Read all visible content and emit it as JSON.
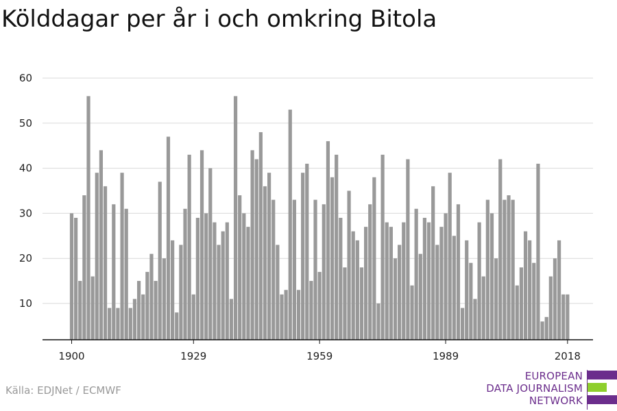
{
  "title": "Kölddagar per år i och omkring Bitola",
  "source": "Källa: EDJNet / ECMWF",
  "logo": {
    "lines": [
      "EUROPEAN",
      "DATA JOURNALISM",
      "NETWORK"
    ],
    "colors": {
      "purple": "#6b2d8c",
      "green": "#8ecf2c"
    }
  },
  "chart_data": {
    "type": "bar",
    "xlabel": "",
    "ylabel": "",
    "ylim": [
      0,
      60
    ],
    "yticks": [
      10,
      20,
      30,
      40,
      50,
      60
    ],
    "xticks": [
      1900,
      1929,
      1959,
      1989,
      2018
    ],
    "bar_color": "#999999",
    "grid": true,
    "x": [
      1900,
      1901,
      1902,
      1903,
      1904,
      1905,
      1906,
      1907,
      1908,
      1909,
      1910,
      1911,
      1912,
      1913,
      1914,
      1915,
      1916,
      1917,
      1918,
      1919,
      1920,
      1921,
      1922,
      1923,
      1924,
      1925,
      1926,
      1927,
      1928,
      1929,
      1930,
      1931,
      1932,
      1933,
      1934,
      1935,
      1936,
      1937,
      1938,
      1939,
      1940,
      1941,
      1942,
      1943,
      1944,
      1945,
      1946,
      1947,
      1948,
      1949,
      1950,
      1951,
      1952,
      1953,
      1954,
      1955,
      1956,
      1957,
      1958,
      1959,
      1960,
      1961,
      1962,
      1963,
      1964,
      1965,
      1966,
      1967,
      1968,
      1969,
      1970,
      1971,
      1972,
      1973,
      1974,
      1975,
      1976,
      1977,
      1978,
      1979,
      1980,
      1981,
      1982,
      1983,
      1984,
      1985,
      1986,
      1987,
      1988,
      1989,
      1990,
      1991,
      1992,
      1993,
      1994,
      1995,
      1996,
      1997,
      1998,
      1999,
      2000,
      2001,
      2002,
      2003,
      2004,
      2005,
      2006,
      2007,
      2008,
      2009,
      2010,
      2011,
      2012,
      2013,
      2014,
      2015,
      2016,
      2017,
      2018
    ],
    "values": [
      30,
      29,
      15,
      34,
      56,
      16,
      39,
      44,
      36,
      9,
      32,
      9,
      39,
      31,
      9,
      11,
      15,
      12,
      17,
      21,
      15,
      37,
      20,
      47,
      24,
      8,
      23,
      31,
      43,
      12,
      29,
      44,
      30,
      40,
      28,
      23,
      26,
      28,
      11,
      56,
      34,
      30,
      27,
      44,
      42,
      48,
      36,
      39,
      33,
      23,
      12,
      13,
      53,
      33,
      13,
      39,
      41,
      15,
      33,
      17,
      32,
      46,
      38,
      43,
      29,
      18,
      35,
      26,
      24,
      18,
      27,
      32,
      38,
      10,
      43,
      28,
      27,
      20,
      23,
      28,
      42,
      14,
      31,
      21,
      29,
      28,
      36,
      23,
      27,
      30,
      39,
      25,
      32,
      9,
      24,
      19,
      11,
      28,
      16,
      33,
      30,
      20,
      42,
      33,
      34,
      33,
      14,
      18,
      26,
      24,
      19,
      41,
      6,
      7,
      16,
      20,
      24,
      12,
      12
    ]
  }
}
